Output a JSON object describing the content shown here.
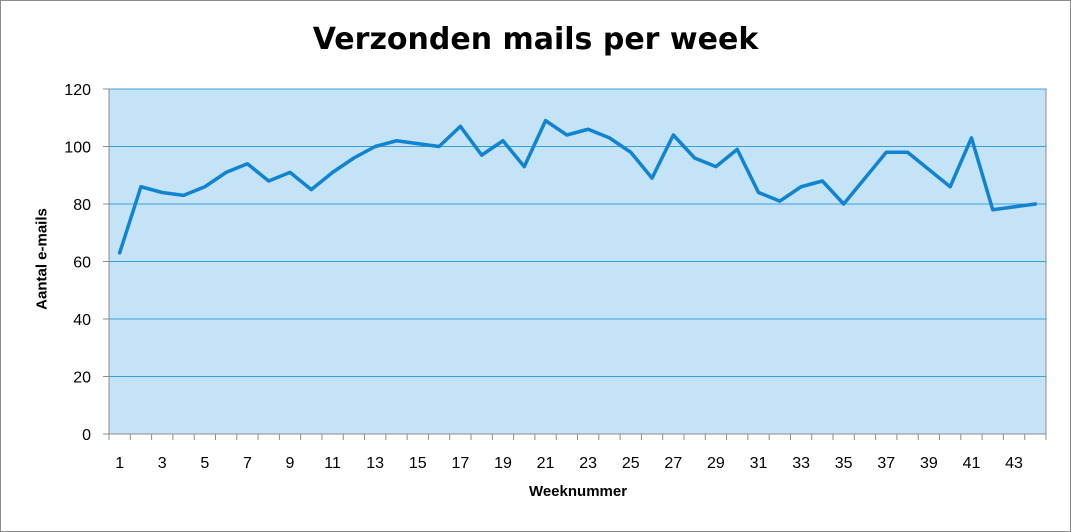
{
  "chart_data": {
    "type": "line",
    "title": "Verzonden mails per week",
    "xlabel": "Weeknummer",
    "ylabel": "Aantal e-mails",
    "ylim": [
      0,
      120
    ],
    "yticks": [
      0,
      20,
      40,
      60,
      80,
      100,
      120
    ],
    "xtick_labels": [
      "1",
      "3",
      "5",
      "7",
      "9",
      "11",
      "13",
      "15",
      "17",
      "19",
      "21",
      "23",
      "25",
      "27",
      "29",
      "31",
      "33",
      "35",
      "37",
      "39",
      "41",
      "43"
    ],
    "x": [
      1,
      2,
      3,
      4,
      5,
      6,
      7,
      8,
      9,
      10,
      11,
      12,
      13,
      14,
      15,
      16,
      17,
      18,
      19,
      20,
      21,
      22,
      23,
      24,
      25,
      26,
      27,
      28,
      29,
      30,
      31,
      32,
      33,
      34,
      35,
      36,
      37,
      38,
      39,
      40,
      41,
      42,
      43,
      44
    ],
    "series": [
      {
        "values": [
          63,
          86,
          84,
          83,
          86,
          91,
          94,
          88,
          91,
          85,
          91,
          96,
          100,
          102,
          101,
          100,
          107,
          97,
          102,
          93,
          109,
          104,
          106,
          103,
          98,
          89,
          104,
          96,
          93,
          99,
          84,
          81,
          86,
          88,
          80,
          89,
          98,
          98,
          92,
          86,
          103,
          78,
          79,
          80
        ]
      }
    ],
    "grid": true,
    "legend": "none",
    "plot_background": "#c5e3f7",
    "line_color": "#1083d1",
    "grid_color": "#3aa0dc"
  }
}
